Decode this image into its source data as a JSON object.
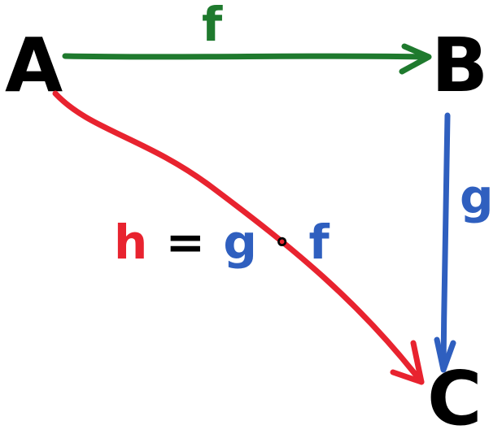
{
  "nodes": {
    "a": {
      "label": "A"
    },
    "b": {
      "label": "B"
    },
    "c": {
      "label": "C"
    }
  },
  "edges": {
    "f": {
      "label": "f",
      "color": "#1f7a2e"
    },
    "g": {
      "label": "g",
      "color": "#2f5fbf"
    },
    "h": {
      "label": "h",
      "color": "#e8232f"
    }
  },
  "composition": {
    "lhs": "h",
    "equals": "=",
    "g": "g",
    "compose": "∘",
    "f": "f",
    "lhs_color": "#e8232f",
    "equals_color": "#000000",
    "rhs_color": "#2f5fbf"
  }
}
